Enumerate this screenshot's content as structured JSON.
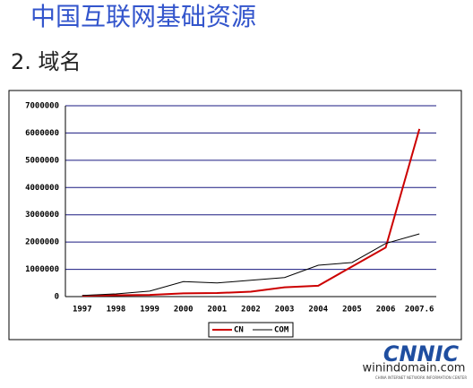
{
  "header": {
    "title": "中国互联网基础资源",
    "subtitle": "2. 域名"
  },
  "chart_data": {
    "type": "line",
    "categories": [
      "1997",
      "1998",
      "1999",
      "2000",
      "2001",
      "2002",
      "2003",
      "2004",
      "2005",
      "2006",
      "2007.6"
    ],
    "series": [
      {
        "name": "CN",
        "color": "#cc0000",
        "values": [
          30000,
          50000,
          60000,
          120000,
          130000,
          180000,
          340000,
          400000,
          1100000,
          1800000,
          6150000
        ]
      },
      {
        "name": "COM",
        "color": "#000000",
        "values": [
          40000,
          100000,
          200000,
          550000,
          500000,
          600000,
          700000,
          1150000,
          1250000,
          1950000,
          2300000
        ]
      }
    ],
    "ylim": [
      0,
      7000000
    ],
    "yticks": [
      0,
      1000000,
      2000000,
      3000000,
      4000000,
      5000000,
      6000000,
      7000000
    ],
    "grid": true,
    "legend": "bottom"
  },
  "footer": {
    "logo": "CNNIC",
    "site": "winindomain.com",
    "org": "CHINA INTERNET NETWORK INFORMATION CENTER"
  }
}
